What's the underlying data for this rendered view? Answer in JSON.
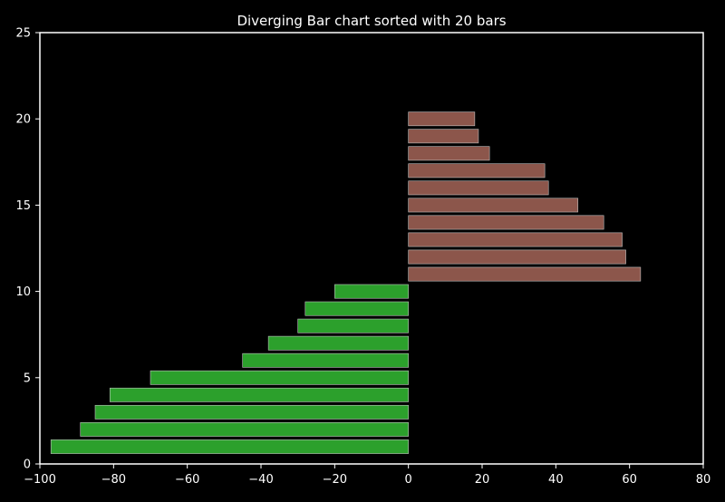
{
  "chart_data": {
    "type": "bar",
    "orientation": "horizontal",
    "title": "Diverging Bar chart sorted with 20 bars",
    "xlabel": "",
    "ylabel": "",
    "xlim": [
      -100,
      80
    ],
    "ylim": [
      0,
      25
    ],
    "x_ticks": [
      "−100",
      "−80",
      "−60",
      "−40",
      "−20",
      "0",
      "20",
      "40",
      "60",
      "80"
    ],
    "y_ticks": [
      "0",
      "5",
      "10",
      "15",
      "20",
      "25"
    ],
    "grid": false,
    "legend": "none",
    "y": [
      1,
      2,
      3,
      4,
      5,
      6,
      7,
      8,
      9,
      10,
      11,
      12,
      13,
      14,
      15,
      16,
      17,
      18,
      19,
      20
    ],
    "values": [
      -97,
      -89,
      -85,
      -81,
      -70,
      -45,
      -38,
      -30,
      -28,
      -20,
      63,
      59,
      58,
      53,
      46,
      38,
      37,
      22,
      19,
      18
    ],
    "colors": {
      "negative": "#2ca02c",
      "positive": "#8c564b",
      "bar_edge": "#bfbfbf",
      "axes": "#ffffff",
      "background": "#000000"
    }
  }
}
